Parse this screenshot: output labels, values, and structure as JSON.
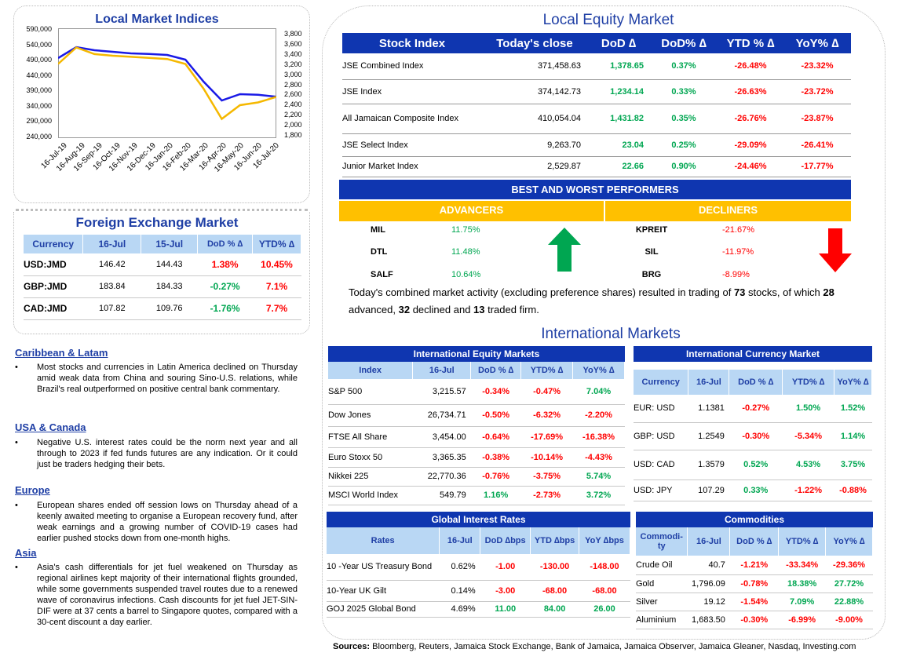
{
  "chart": {
    "title": "Local Market Indices",
    "left_ticks": [
      "590,000",
      "540,000",
      "490,000",
      "440,000",
      "390,000",
      "340,000",
      "290,000",
      "240,000"
    ],
    "right_ticks": [
      "3,800",
      "3,600",
      "3,400",
      "3,200",
      "3,000",
      "2,800",
      "2,600",
      "2,400",
      "2,200",
      "2,000",
      "1,800"
    ],
    "x_ticks": [
      "16-Jul-19",
      "16-Aug-19",
      "16-Sep-19",
      "16-Oct-19",
      "16-Nov-19",
      "16-Dec-19",
      "16-Jan-20",
      "16-Feb-20",
      "16-Mar-20",
      "16-Apr-20",
      "16-May-20",
      "16-Jun-20",
      "16-Jul-20"
    ],
    "colors": {
      "left_series": "#1a1ae6",
      "right_series": "#f5b800"
    }
  },
  "chart_data": {
    "type": "line",
    "title": "Local Market Indices",
    "x": [
      "16-Jul-19",
      "16-Aug-19",
      "16-Sep-19",
      "16-Oct-19",
      "16-Nov-19",
      "16-Dec-19",
      "16-Jan-20",
      "16-Feb-20",
      "16-Mar-20",
      "16-Apr-20",
      "16-May-20",
      "16-Jun-20",
      "16-Jul-20"
    ],
    "series": [
      {
        "axis": "left",
        "values": [
          495000,
          530000,
          520000,
          515000,
          510000,
          508000,
          505000,
          490000,
          420000,
          360000,
          380000,
          378000,
          372000
        ]
      },
      {
        "axis": "right",
        "values": [
          3150,
          3450,
          3330,
          3300,
          3280,
          3260,
          3240,
          3150,
          2700,
          2150,
          2400,
          2450,
          2550
        ]
      }
    ],
    "ylim_left": [
      240000,
      590000
    ],
    "ylim_right": [
      1800,
      3800
    ],
    "grid": false
  },
  "fx": {
    "title": "Foreign Exchange Market",
    "headers": [
      "Currency",
      "16-Jul",
      "15-Jul",
      "DoD % ∆",
      "YTD% ∆"
    ],
    "rows": [
      {
        "cur": "USD:JMD",
        "a": "146.42",
        "b": "144.43",
        "dod": "1.38%",
        "ytd": "10.45%",
        "dod_c": "red",
        "ytd_c": "red"
      },
      {
        "cur": "GBP:JMD",
        "a": "183.84",
        "b": "184.33",
        "dod": "-0.27%",
        "ytd": "7.1%",
        "dod_c": "green",
        "ytd_c": "red"
      },
      {
        "cur": "CAD:JMD",
        "a": "107.82",
        "b": "109.76",
        "dod": "-1.76%",
        "ytd": "7.7%",
        "dod_c": "green",
        "ytd_c": "red"
      }
    ]
  },
  "news": [
    {
      "heading": "Caribbean & Latam",
      "text": "Most stocks and currencies in Latin America declined on Thursday amid weak data from China and souring Sino-U.S. relations, while Brazil's real outperformed on positive central bank commentary."
    },
    {
      "heading": "USA & Canada",
      "text": "Negative U.S. interest rates could be the norm next year and all through to 2023 if fed funds futures are any indication. Or it could just be traders hedging their bets."
    },
    {
      "heading": "Europe",
      "text": "European shares ended off session lows on Thursday ahead of a keenly awaited meeting to organise a European recovery fund, after weak earnings and a growing number of COVID-19 cases had earlier pushed stocks down from one-month highs."
    },
    {
      "heading": "Asia",
      "text": "Asia's cash differentials for jet fuel weakened on Thursday as regional airlines kept majority of their international flights grounded, while some governments suspended travel routes due to a renewed wave of coronavirus infections. Cash discounts for jet fuel JET-SIN-DIF were at 37 cents a barrel to Singapore quotes, compared with a 30-cent discount a day earlier."
    }
  ],
  "equity": {
    "title": "Local Equity Market",
    "headers": [
      "Stock Index",
      "Today's close",
      "DoD  ∆",
      "DoD% ∆",
      "YTD % ∆",
      "YoY% ∆"
    ],
    "rows": [
      {
        "name": "JSE Combined Index",
        "close": "371,458.63",
        "dod": "1,378.65",
        "dodp": "0.37%",
        "ytd": "-26.48%",
        "yoy": "-23.32%"
      },
      {
        "name": "JSE Index",
        "close": "374,142.73",
        "dod": "1,234.14",
        "dodp": "0.33%",
        "ytd": "-26.63%",
        "yoy": "-23.72%"
      },
      {
        "name": "All Jamaican Composite Index",
        "close": "410,054.04",
        "dod": "1,431.82",
        "dodp": "0.35%",
        "ytd": "-26.76%",
        "yoy": "-23.87%"
      },
      {
        "name": "JSE Select Index",
        "close": "9,263.70",
        "dod": "23.04",
        "dodp": "0.25%",
        "ytd": "-29.09%",
        "yoy": "-26.41%"
      },
      {
        "name": "Junior Market Index",
        "close": "2,529.87",
        "dod": "22.66",
        "dodp": "0.90%",
        "ytd": "-24.46%",
        "yoy": "-17.77%"
      }
    ]
  },
  "performers": {
    "title": "BEST AND WORST PERFORMERS",
    "adv_label": "ADVANCERS",
    "dec_label": "DECLINERS",
    "advancers": [
      {
        "t": "MIL",
        "v": "11.75%"
      },
      {
        "t": "DTL",
        "v": "11.48%"
      },
      {
        "t": "SALF",
        "v": "10.64%"
      }
    ],
    "decliners": [
      {
        "t": "KPREIT",
        "v": "-21.67%"
      },
      {
        "t": "SIL",
        "v": "-11.97%"
      },
      {
        "t": "BRG",
        "v": "-8.99%"
      }
    ]
  },
  "summary": {
    "p1": "Today's combined market activity (excluding preference shares) resulted in trading of ",
    "n1": "73",
    "p2": " stocks, of which ",
    "n2": "28",
    "p3": " advanced, ",
    "n3": "32",
    "p4": " declined and ",
    "n4": "13",
    "p5": " traded firm."
  },
  "intl": {
    "title": "International Markets",
    "equity": {
      "title": "International Equity Markets",
      "headers": [
        "Index",
        "16-Jul",
        "DoD % ∆",
        "YTD% ∆",
        "YoY% ∆"
      ],
      "rows": [
        {
          "n": "S&P 500",
          "v": "3,215.57",
          "d": "-0.34%",
          "y": "-0.47%",
          "o": "7.04%",
          "dc": "red",
          "yc": "red",
          "oc": "green"
        },
        {
          "n": "Dow Jones",
          "v": "26,734.71",
          "d": "-0.50%",
          "y": "-6.32%",
          "o": "-2.20%",
          "dc": "red",
          "yc": "red",
          "oc": "red"
        },
        {
          "n": "FTSE All Share",
          "v": "3,454.00",
          "d": "-0.64%",
          "y": "-17.69%",
          "o": "-16.38%",
          "dc": "red",
          "yc": "red",
          "oc": "red"
        },
        {
          "n": "Euro Stoxx 50",
          "v": "3,365.35",
          "d": "-0.38%",
          "y": "-10.14%",
          "o": "-4.43%",
          "dc": "red",
          "yc": "red",
          "oc": "red"
        },
        {
          "n": "Nikkei 225",
          "v": "22,770.36",
          "d": "-0.76%",
          "y": "-3.75%",
          "o": "5.74%",
          "dc": "red",
          "yc": "red",
          "oc": "green"
        },
        {
          "n": "MSCI World Index",
          "v": "549.79",
          "d": "1.16%",
          "y": "-2.73%",
          "o": "3.72%",
          "dc": "green",
          "yc": "red",
          "oc": "green"
        }
      ]
    },
    "currency": {
      "title": "International Currency Market",
      "headers": [
        "Currency",
        "16-Jul",
        "DoD % ∆",
        "YTD% ∆",
        "YoY% ∆"
      ],
      "rows": [
        {
          "n": "EUR: USD",
          "v": "1.1381",
          "d": "-0.27%",
          "y": "1.50%",
          "o": "1.52%",
          "dc": "red",
          "yc": "green",
          "oc": "green"
        },
        {
          "n": "GBP: USD",
          "v": "1.2549",
          "d": "-0.30%",
          "y": "-5.34%",
          "o": "1.14%",
          "dc": "red",
          "yc": "red",
          "oc": "green"
        },
        {
          "n": "USD: CAD",
          "v": "1.3579",
          "d": "0.52%",
          "y": "4.53%",
          "o": "3.75%",
          "dc": "green",
          "yc": "green",
          "oc": "green"
        },
        {
          "n": "USD: JPY",
          "v": "107.29",
          "d": "0.33%",
          "y": "-1.22%",
          "o": "-0.88%",
          "dc": "green",
          "yc": "red",
          "oc": "red"
        }
      ]
    },
    "rates": {
      "title": "Global Interest Rates",
      "headers": [
        "Rates",
        "16-Jul",
        "DoD ∆bps",
        "YTD ∆bps",
        "YoY ∆bps"
      ],
      "rows": [
        {
          "n": "10 -Year US Treasury Bond",
          "v": "0.62%",
          "d": "-1.00",
          "y": "-130.00",
          "o": "-148.00",
          "dc": "red",
          "yc": "red",
          "oc": "red"
        },
        {
          "n": "10-Year UK Gilt",
          "v": "0.14%",
          "d": "-3.00",
          "y": "-68.00",
          "o": "-68.00",
          "dc": "red",
          "yc": "red",
          "oc": "red"
        },
        {
          "n": "GOJ 2025 Global Bond",
          "v": "4.69%",
          "d": "11.00",
          "y": "84.00",
          "o": "26.00",
          "dc": "green",
          "yc": "green",
          "oc": "green"
        }
      ]
    },
    "commodities": {
      "title": "Commodities",
      "headers": [
        "Commodi- ty",
        "16-Jul",
        "DoD % ∆",
        "YTD% ∆",
        "YoY% ∆"
      ],
      "rows": [
        {
          "n": "Crude Oil",
          "v": "40.7",
          "d": "-1.21%",
          "y": "-33.34%",
          "o": "-29.36%",
          "dc": "red",
          "yc": "red",
          "oc": "red"
        },
        {
          "n": "Gold",
          "v": "1,796.09",
          "d": "-0.78%",
          "y": "18.38%",
          "o": "27.72%",
          "dc": "red",
          "yc": "green",
          "oc": "green"
        },
        {
          "n": "Silver",
          "v": "19.12",
          "d": "-1.54%",
          "y": "7.09%",
          "o": "22.88%",
          "dc": "red",
          "yc": "green",
          "oc": "green"
        },
        {
          "n": "Aluminium",
          "v": "1,683.50",
          "d": "-0.30%",
          "y": "-6.99%",
          "o": "-9.00%",
          "dc": "red",
          "yc": "red",
          "oc": "red"
        }
      ]
    }
  },
  "sources": {
    "label": "Sources:",
    "text": " Bloomberg, Reuters, Jamaica Stock Exchange, Bank of Jamaica, Jamaica Observer, Jamaica Gleaner, Nasdaq, Investing.com"
  }
}
